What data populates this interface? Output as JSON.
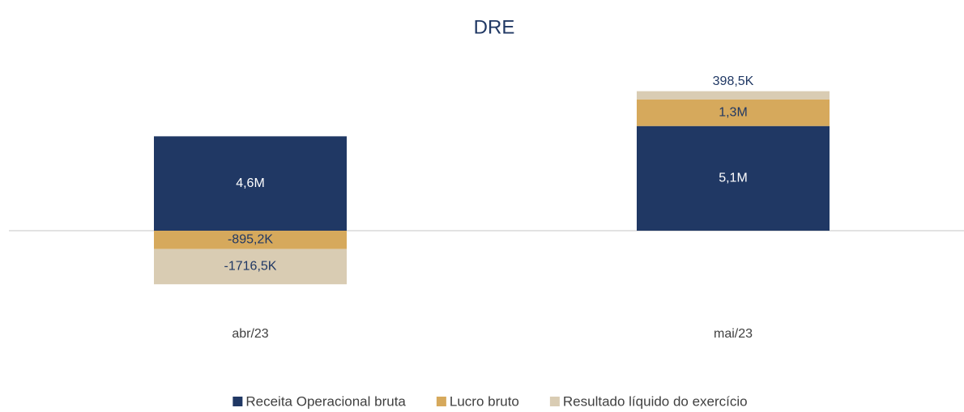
{
  "chart_data": {
    "type": "bar",
    "stacked": true,
    "title": "DRE",
    "categories": [
      "abr/23",
      "mai/23"
    ],
    "series": [
      {
        "name": "Receita Operacional bruta",
        "color": "#203864",
        "values": [
          4600000,
          5100000
        ],
        "value_labels": [
          "4,6M",
          "5,1M"
        ]
      },
      {
        "name": "Lucro bruto",
        "color": "#d6a95c",
        "values": [
          -895200,
          1300000
        ],
        "value_labels": [
          "-895,2K",
          "1,3M"
        ]
      },
      {
        "name": "Resultado líquido do exercício",
        "color": "#d9ccb3",
        "values": [
          -1716500,
          398500
        ],
        "value_labels": [
          "-1716,5K",
          "398,5K"
        ]
      }
    ],
    "ylim": [
      -4000000,
      9000000
    ],
    "legend": "bottom"
  }
}
